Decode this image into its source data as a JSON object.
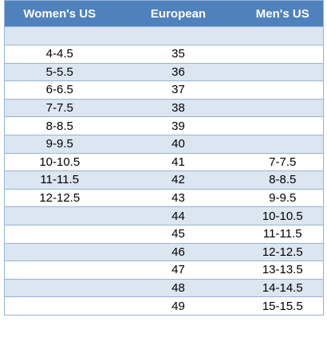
{
  "table": {
    "headers": [
      "Women's US",
      "European",
      "Men's US"
    ],
    "rows": [
      [
        null,
        null,
        null
      ],
      [
        "4-4.5",
        "35",
        null
      ],
      [
        "5-5.5",
        "36",
        null
      ],
      [
        "6-6.5",
        "37",
        null
      ],
      [
        "7-7.5",
        "38",
        null
      ],
      [
        "8-8.5",
        "39",
        null
      ],
      [
        "9-9.5",
        "40",
        null
      ],
      [
        "10-10.5",
        "41",
        "7-7.5"
      ],
      [
        "11-11.5",
        "42",
        "8-8.5"
      ],
      [
        "12-12.5",
        "43",
        "9-9.5"
      ],
      [
        null,
        "44",
        "10-10.5"
      ],
      [
        null,
        "45",
        "11-11.5"
      ],
      [
        null,
        "46",
        "12-12.5"
      ],
      [
        null,
        "47",
        "13-13.5"
      ],
      [
        null,
        "48",
        "14-14.5"
      ],
      [
        null,
        "49",
        "15-15.5"
      ]
    ]
  }
}
